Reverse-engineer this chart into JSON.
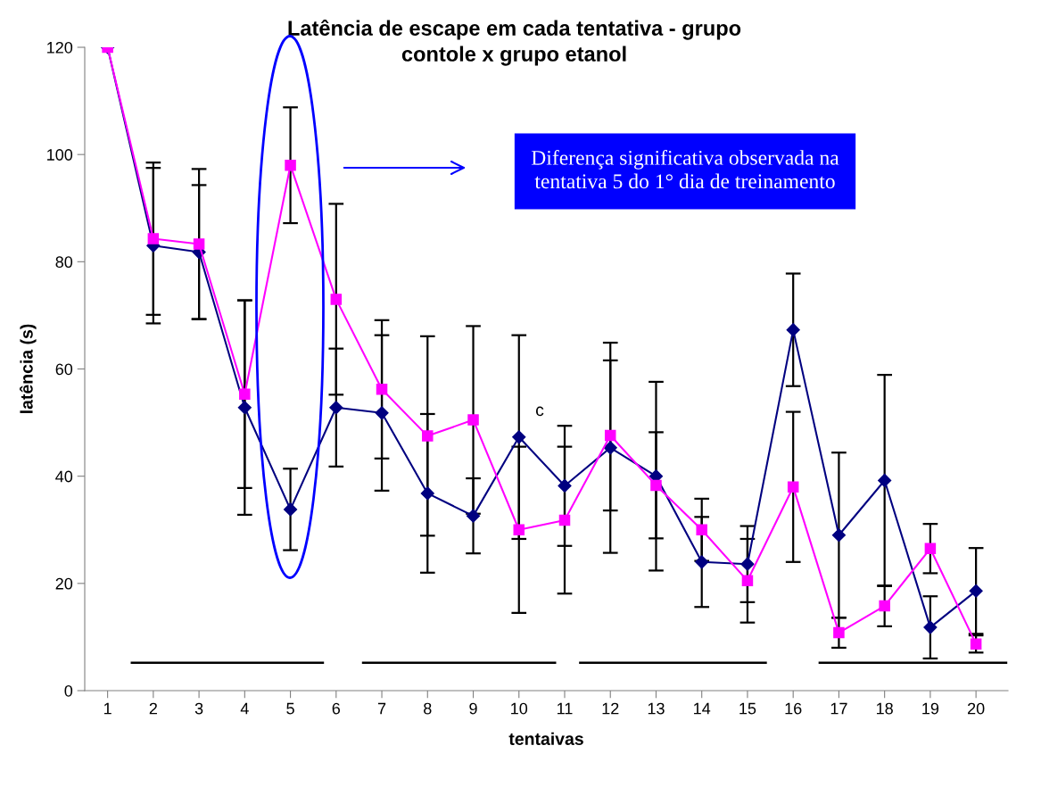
{
  "chart_data": {
    "type": "line",
    "title": "Latência de escape em cada tentativa - grupo\ncontole x grupo etanol",
    "xlabel": "tentaivas",
    "ylabel": "latência (s)",
    "x": [
      1,
      2,
      3,
      4,
      5,
      6,
      7,
      8,
      9,
      10,
      11,
      12,
      13,
      14,
      15,
      16,
      17,
      18,
      19,
      20
    ],
    "xlim": [
      0.5,
      20.7
    ],
    "xticks": [
      1,
      2,
      3,
      4,
      5,
      6,
      7,
      8,
      9,
      10,
      11,
      12,
      13,
      14,
      15,
      16,
      17,
      18,
      19,
      20
    ],
    "ylim": [
      0,
      120
    ],
    "yticks": [
      0,
      20,
      40,
      60,
      80,
      100,
      120
    ],
    "grid": false,
    "series": [
      {
        "color": "#000080",
        "marker": "diamond",
        "values": [
          120,
          83,
          81.8,
          52.8,
          33.8,
          52.8,
          51.8,
          36.8,
          32.6,
          47.3,
          38.2,
          45.3,
          40,
          24,
          23.6,
          67.3,
          29,
          39.2,
          11.8,
          18.6
        ],
        "errors": [
          null,
          14.5,
          12.5,
          20,
          7.6,
          11,
          14.5,
          14.8,
          7,
          19,
          11.2,
          19.6,
          17.6,
          8.4,
          7.1,
          10.5,
          15.4,
          19.7,
          5.8,
          8
        ]
      },
      {
        "color": "#ff00ff",
        "marker": "square",
        "values": [
          120,
          84.3,
          83.3,
          55.3,
          98,
          73,
          56.2,
          47.5,
          50.5,
          30,
          31.8,
          47.6,
          38.3,
          30,
          20.5,
          38,
          10.8,
          15.8,
          26.5,
          8.7
        ],
        "errors": [
          null,
          14.2,
          14,
          17.5,
          10.8,
          17.8,
          12.9,
          18.6,
          17.5,
          15.5,
          13.7,
          14,
          9.9,
          5.8,
          7.8,
          14,
          2.8,
          3.8,
          4.6,
          1.6
        ]
      },
      {
        "color": "#000000",
        "marker": "none",
        "x": [
          1.53,
          5.71
        ],
        "values": [
          5.2,
          5.2
        ]
      },
      {
        "color": "#000000",
        "marker": "none",
        "x": [
          6.59,
          10.79
        ],
        "values": [
          5.2,
          5.2
        ]
      },
      {
        "color": "#000000",
        "marker": "none",
        "x": [
          11.34,
          15.4
        ],
        "values": [
          5.2,
          5.2
        ]
      },
      {
        "color": "#000000",
        "marker": "none",
        "x": [
          16.58,
          20.66
        ],
        "values": [
          5.2,
          5.2
        ]
      }
    ],
    "annotations": [
      "Diferença significativa observada na\ntentativa 5 do 1° dia de treinamento",
      "c"
    ]
  }
}
